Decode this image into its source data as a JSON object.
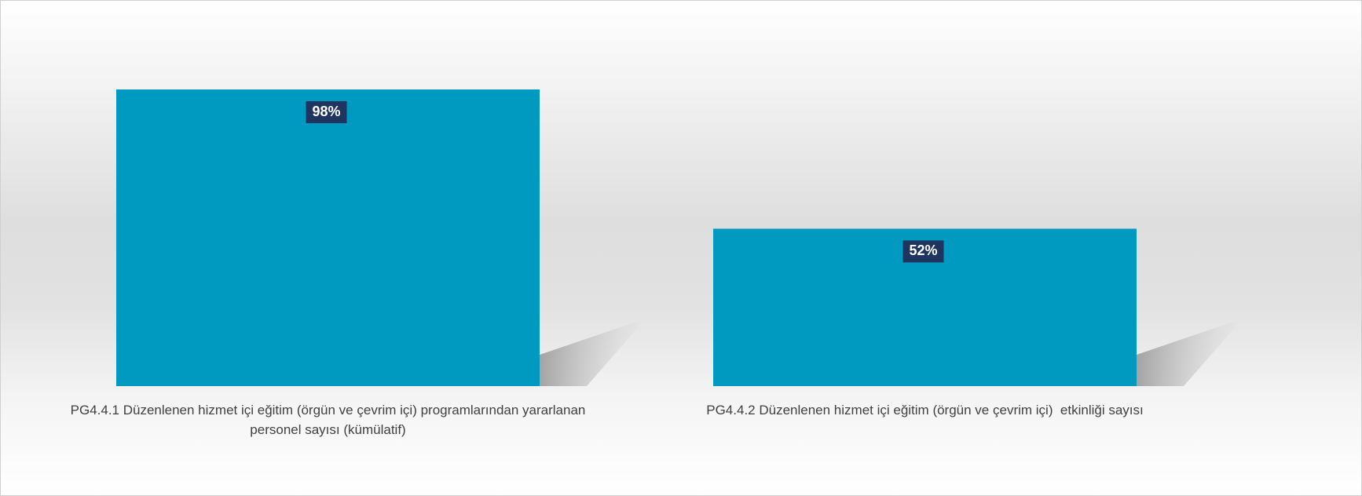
{
  "chart_data": {
    "type": "bar",
    "categories": [
      "PG4.4.1 Düzenlenen hizmet içi eğitim (örgün ve çevrim içi) programlarından yararlanan personel sayısı (kümülatif)",
      "PG4.4.2 Düzenlenen hizmet içi eğitim (örgün ve çevrim içi)  etkinliği sayısı"
    ],
    "values": [
      98,
      52
    ],
    "value_labels": [
      "98%",
      "52%"
    ],
    "color": "#0099bf"
  }
}
